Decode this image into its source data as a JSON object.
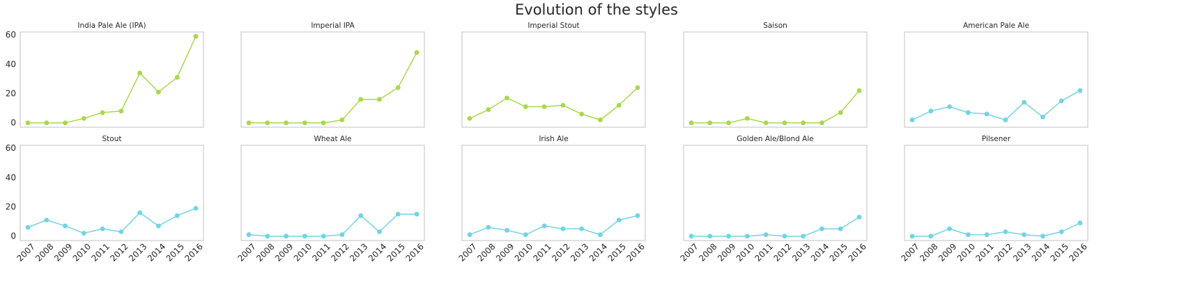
{
  "chart_data": {
    "type": "line",
    "title": "Evolution of the styles",
    "x": [
      "2007",
      "2008",
      "2009",
      "2010",
      "2011",
      "2012",
      "2013",
      "2014",
      "2015",
      "2016"
    ],
    "ylim": [
      -3,
      62
    ],
    "yticks": [
      0,
      20,
      40,
      60
    ],
    "grid": false,
    "marker": "circle",
    "colors": {
      "green": "#a9d84a",
      "blue": "#72d3e3"
    },
    "series": [
      {
        "name": "India Pale Ale (IPA)",
        "color": "#a9d84a",
        "values": [
          0,
          0,
          0,
          3,
          7,
          8,
          34,
          21,
          31,
          59
        ]
      },
      {
        "name": "Imperial IPA",
        "color": "#a9d84a",
        "values": [
          0,
          0,
          0,
          0,
          0,
          2,
          16,
          16,
          24,
          48
        ]
      },
      {
        "name": "Imperial Stout",
        "color": "#a9d84a",
        "values": [
          3,
          9,
          17,
          11,
          11,
          12,
          6,
          2,
          12,
          24
        ]
      },
      {
        "name": "Saison",
        "color": "#a9d84a",
        "values": [
          0,
          0,
          0,
          3,
          0,
          0,
          0,
          0,
          7,
          22
        ]
      },
      {
        "name": "American Pale Ale",
        "color": "#72d3e3",
        "values": [
          2,
          8,
          11,
          7,
          6,
          2,
          14,
          4,
          15,
          22
        ]
      },
      {
        "name": "Stout",
        "color": "#72d3e3",
        "values": [
          6,
          11,
          7,
          2,
          5,
          3,
          16,
          7,
          14,
          19
        ]
      },
      {
        "name": "Wheat Ale",
        "color": "#72d3e3",
        "values": [
          1,
          0,
          0,
          0,
          0,
          1,
          14,
          3,
          15,
          15
        ]
      },
      {
        "name": "Irish Ale",
        "color": "#72d3e3",
        "values": [
          1,
          6,
          4,
          1,
          7,
          5,
          5,
          1,
          11,
          14
        ]
      },
      {
        "name": "Golden Ale/Blond Ale",
        "color": "#72d3e3",
        "values": [
          0,
          0,
          0,
          0,
          1,
          0,
          0,
          5,
          5,
          13
        ]
      },
      {
        "name": "Pilsener",
        "color": "#72d3e3",
        "values": [
          0,
          0,
          5,
          1,
          1,
          3,
          1,
          0,
          3,
          9
        ]
      }
    ]
  }
}
